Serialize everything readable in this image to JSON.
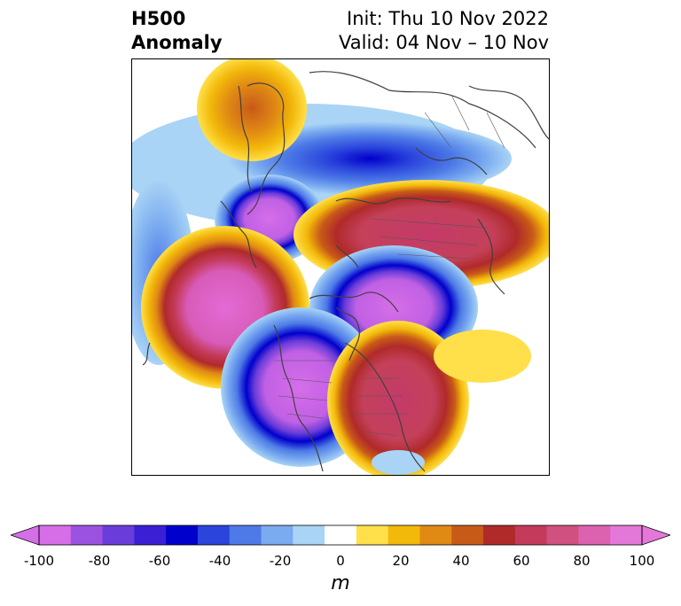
{
  "title": {
    "left_line1": "H500",
    "left_line2": "Anomaly",
    "right_line1": "Init: Thu 10 Nov 2022",
    "right_line2": "Valid: 04 Nov – 10 Nov"
  },
  "colorbar": {
    "label": "m",
    "ticks": [
      "-100",
      "-80",
      "-60",
      "-40",
      "-20",
      "0",
      "20",
      "40",
      "60",
      "80",
      "100"
    ],
    "tick_values": [
      -100,
      -80,
      -60,
      -40,
      -20,
      0,
      20,
      40,
      60,
      80,
      100
    ],
    "colors": [
      "#d66ee8",
      "#9b52e0",
      "#6a3cd9",
      "#3a1fd4",
      "#0000cc",
      "#2a44dc",
      "#4d7ae6",
      "#7aaaf0",
      "#a9d4f5",
      "#ffffff",
      "#ffe04a",
      "#f2b80a",
      "#e08a14",
      "#c85a18",
      "#b02a2a",
      "#c43a5a",
      "#d05080",
      "#dc62b0",
      "#e478d8"
    ],
    "extend_min_color": "#d66ee8",
    "extend_max_color": "#e478d8"
  },
  "map": {
    "projection": "north-polar-stereographic",
    "field": "500 hPa geopotential height anomaly"
  }
}
